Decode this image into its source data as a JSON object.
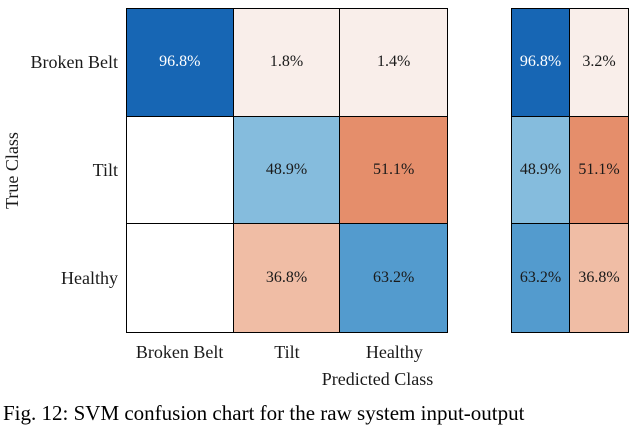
{
  "caption": "Fig. 12: SVM confusion chart for the raw system input-output",
  "colors": {
    "background": "#ffffff",
    "grid_line": "#000000",
    "diagonal_high": "#1766b4",
    "diagonal_mid": "#539bce",
    "diagonal_low": "#85bcdd",
    "offdiagonal_high": "#e58e6b",
    "offdiagonal_mid": "#f0bda5",
    "offdiagonal_faint": "#f9eeea",
    "empty_cell": "#ffffff",
    "text": "#1a1a1a",
    "text_on_dark": "#ffffff"
  },
  "chart_data": {
    "type": "heatmap",
    "variant": "confusion-matrix",
    "title": "",
    "xlabel": "Predicted Class",
    "ylabel": "True Class",
    "x_tick_labels": [
      "Broken Belt",
      "Tilt",
      "Healthy"
    ],
    "y_tick_labels": [
      "Broken Belt",
      "Tilt",
      "Healthy"
    ],
    "grid": true,
    "legend_position": "none",
    "row_summary": "true-positive-rate and false-negative-rate columns shown at right",
    "rows": [
      {
        "true_class": "Broken Belt",
        "cells": [
          {
            "col": "Broken Belt",
            "label": "96.8%",
            "value": 96.8,
            "bg": "#1766b4",
            "fg": "#ffffff"
          },
          {
            "col": "Tilt",
            "label": "1.8%",
            "value": 1.8,
            "bg": "#f9eeea",
            "fg": "#1a1a1a"
          },
          {
            "col": "Healthy",
            "label": "1.4%",
            "value": 1.4,
            "bg": "#f9eeea",
            "fg": "#1a1a1a"
          }
        ],
        "summary": [
          {
            "kind": "correct",
            "label": "96.8%",
            "value": 96.8,
            "bg": "#1766b4",
            "fg": "#ffffff"
          },
          {
            "kind": "incorrect",
            "label": "3.2%",
            "value": 3.2,
            "bg": "#f9eeea",
            "fg": "#1a1a1a"
          }
        ]
      },
      {
        "true_class": "Tilt",
        "cells": [
          {
            "col": "Broken Belt",
            "label": "",
            "value": null,
            "bg": "#ffffff",
            "fg": "#1a1a1a"
          },
          {
            "col": "Tilt",
            "label": "48.9%",
            "value": 48.9,
            "bg": "#85bcdd",
            "fg": "#1a1a1a"
          },
          {
            "col": "Healthy",
            "label": "51.1%",
            "value": 51.1,
            "bg": "#e58e6b",
            "fg": "#1a1a1a"
          }
        ],
        "summary": [
          {
            "kind": "correct",
            "label": "48.9%",
            "value": 48.9,
            "bg": "#85bcdd",
            "fg": "#1a1a1a"
          },
          {
            "kind": "incorrect",
            "label": "51.1%",
            "value": 51.1,
            "bg": "#e58e6b",
            "fg": "#1a1a1a"
          }
        ]
      },
      {
        "true_class": "Healthy",
        "cells": [
          {
            "col": "Broken Belt",
            "label": "",
            "value": null,
            "bg": "#ffffff",
            "fg": "#1a1a1a"
          },
          {
            "col": "Tilt",
            "label": "36.8%",
            "value": 36.8,
            "bg": "#f0bda5",
            "fg": "#1a1a1a"
          },
          {
            "col": "Healthy",
            "label": "63.2%",
            "value": 63.2,
            "bg": "#539bce",
            "fg": "#1a1a1a"
          }
        ],
        "summary": [
          {
            "kind": "correct",
            "label": "63.2%",
            "value": 63.2,
            "bg": "#539bce",
            "fg": "#1a1a1a"
          },
          {
            "kind": "incorrect",
            "label": "36.8%",
            "value": 36.8,
            "bg": "#f0bda5",
            "fg": "#1a1a1a"
          }
        ]
      }
    ]
  }
}
